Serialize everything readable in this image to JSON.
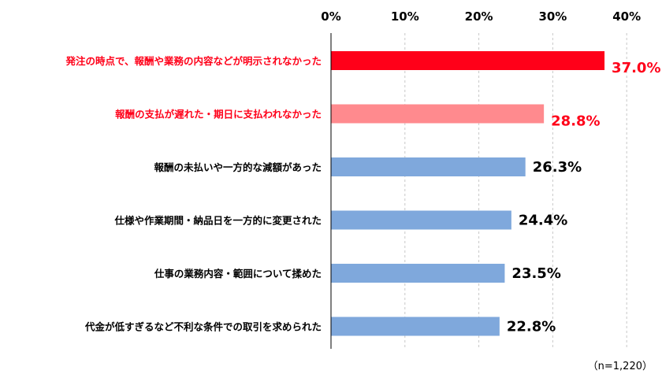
{
  "chart_data": {
    "type": "bar",
    "orientation": "horizontal",
    "categories": [
      "発注の時点で、報酬や業務の内容などが明示されなかった",
      "報酬の支払が遅れた・期日に支払われなかった",
      "報酬の未払いや一方的な減額があった",
      "仕様や作業期間・納品日を一方的に変更された",
      "仕事の業務内容・範囲について揉めた",
      "代金が低すぎるなど不利な条件での取引を求められた"
    ],
    "values": [
      37.0,
      28.8,
      26.3,
      24.4,
      23.5,
      22.8
    ],
    "value_labels": [
      "37.0%",
      "28.8%",
      "26.3%",
      "24.4%",
      "23.5%",
      "22.8%"
    ],
    "xlim": [
      0,
      40
    ],
    "xticks": [
      0,
      10,
      20,
      30,
      40
    ],
    "xtick_labels": [
      "0%",
      "10%",
      "20%",
      "30%",
      "40%"
    ],
    "x_axis_position": "top",
    "grid": true,
    "note": "（n=1,220）",
    "colors": {
      "highlight_1": "#ff0019",
      "highlight_2": "#ff8a8e",
      "default": "#7fa8dc",
      "highlight_text": "#ff0019",
      "default_text": "#000000",
      "grid": "#c8c8c8",
      "axis": "#000000"
    },
    "bar_colors": [
      "highlight_1",
      "highlight_2",
      "default",
      "default",
      "default",
      "default"
    ],
    "label_colors": [
      "highlight_text",
      "highlight_text",
      "default_text",
      "default_text",
      "default_text",
      "default_text"
    ]
  }
}
